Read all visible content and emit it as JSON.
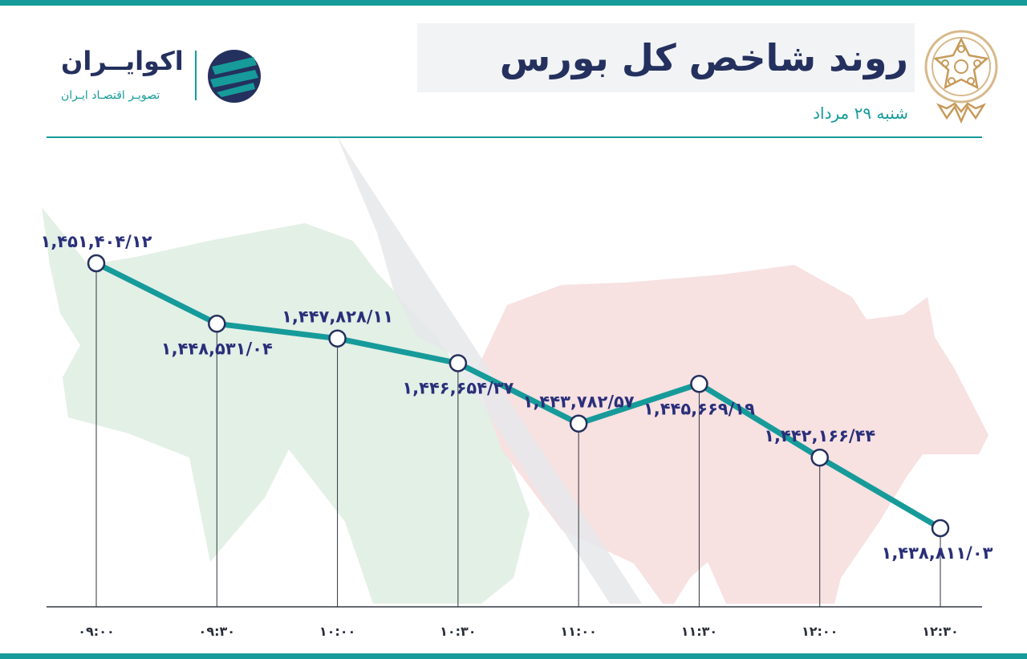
{
  "header": {
    "title": "روند شاخص کل بورس",
    "subtitle": "شنبه ۲۹ مرداد"
  },
  "brand": {
    "name": "اکوایــران",
    "tagline": "تصویـر اقتصـاد ایـران",
    "logo_icon": "ecoiran-logo-icon",
    "emblem_icon": "tehran-stock-exchange-emblem-icon"
  },
  "colors": {
    "accent": "#169b9a",
    "navy": "#24305e",
    "label": "#2a2f7a",
    "bull": "#e3f0e6",
    "bear": "#f7e1e1",
    "arrow": "#e6e8ea"
  },
  "chart_data": {
    "type": "line",
    "x": [
      "۰۹:۰۰",
      "۰۹:۳۰",
      "۱۰:۰۰",
      "۱۰:۳۰",
      "۱۱:۰۰",
      "۱۱:۳۰",
      "۱۲:۰۰",
      "۱۲:۳۰"
    ],
    "values": [
      1451404.12,
      1448531.04,
      1447828.11,
      1446654.37,
      1443782.57,
      1445669.19,
      1442166.44,
      1438811.03
    ],
    "value_labels": [
      "۱,۴۵۱,۴۰۴/۱۲",
      "۱,۴۴۸,۵۳۱/۰۴",
      "۱,۴۴۷,۸۲۸/۱۱",
      "۱,۴۴۶,۶۵۴/۳۷",
      "۱,۴۴۳,۷۸۲/۵۷",
      "۱,۴۴۵,۶۶۹/۱۹",
      "۱,۴۴۲,۱۶۶/۴۴",
      "۱,۴۳۸,۸۱۱/۰۳"
    ],
    "label_positions": [
      "above",
      "below",
      "above",
      "below",
      "above",
      "below",
      "above",
      "below"
    ],
    "title": "روند شاخص کل بورس",
    "xlabel": "",
    "ylabel": "",
    "grid": false,
    "legend": "none",
    "line_color": "#169b9a"
  }
}
